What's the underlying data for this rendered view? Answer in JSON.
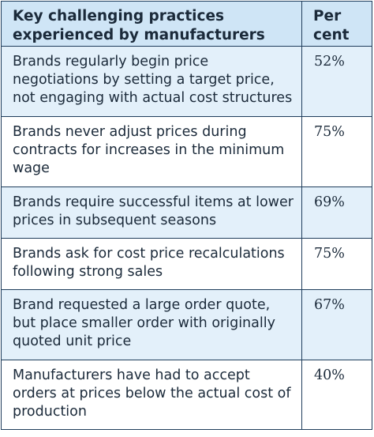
{
  "header": {
    "practice_label": "Key challenging practices experienced by manufacturers",
    "percent_label_line1": "Per",
    "percent_label_line2": "cent"
  },
  "rows": [
    {
      "practice": "Brands regularly begin price negotiations by setting a target price, not engaging with actual cost structures",
      "percent": "52%"
    },
    {
      "practice": "Brands never adjust prices during contracts for increases in the minimum wage",
      "percent": "75%"
    },
    {
      "practice": "Brands require successful items at lower prices in subsequent seasons",
      "percent": "69%"
    },
    {
      "practice": "Brands ask for cost price recalculations following strong sales",
      "percent": "75%"
    },
    {
      "practice": "Brand requested a large order quote, but place smaller order with originally quoted unit price",
      "percent": "67%"
    },
    {
      "practice": "Manufacturers have had to accept orders at prices below the actual cost of production",
      "percent": "40%"
    }
  ],
  "colors": {
    "border": "#1f3d5c",
    "header_bg": "#cfe5f6",
    "row_alt_bg": "#e3f0fa",
    "text": "#1b2a3a"
  }
}
